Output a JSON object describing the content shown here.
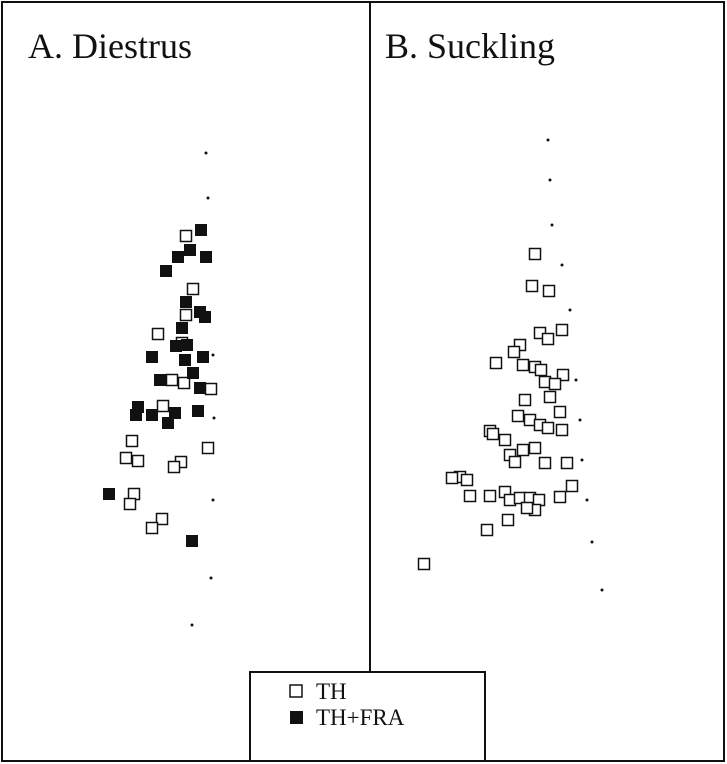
{
  "panels": [
    {
      "title": "A. Diestrus"
    },
    {
      "title": "B. Suckling"
    }
  ],
  "legend": {
    "items": [
      {
        "label": "TH"
      },
      {
        "label": "TH+FRA"
      }
    ]
  }
}
